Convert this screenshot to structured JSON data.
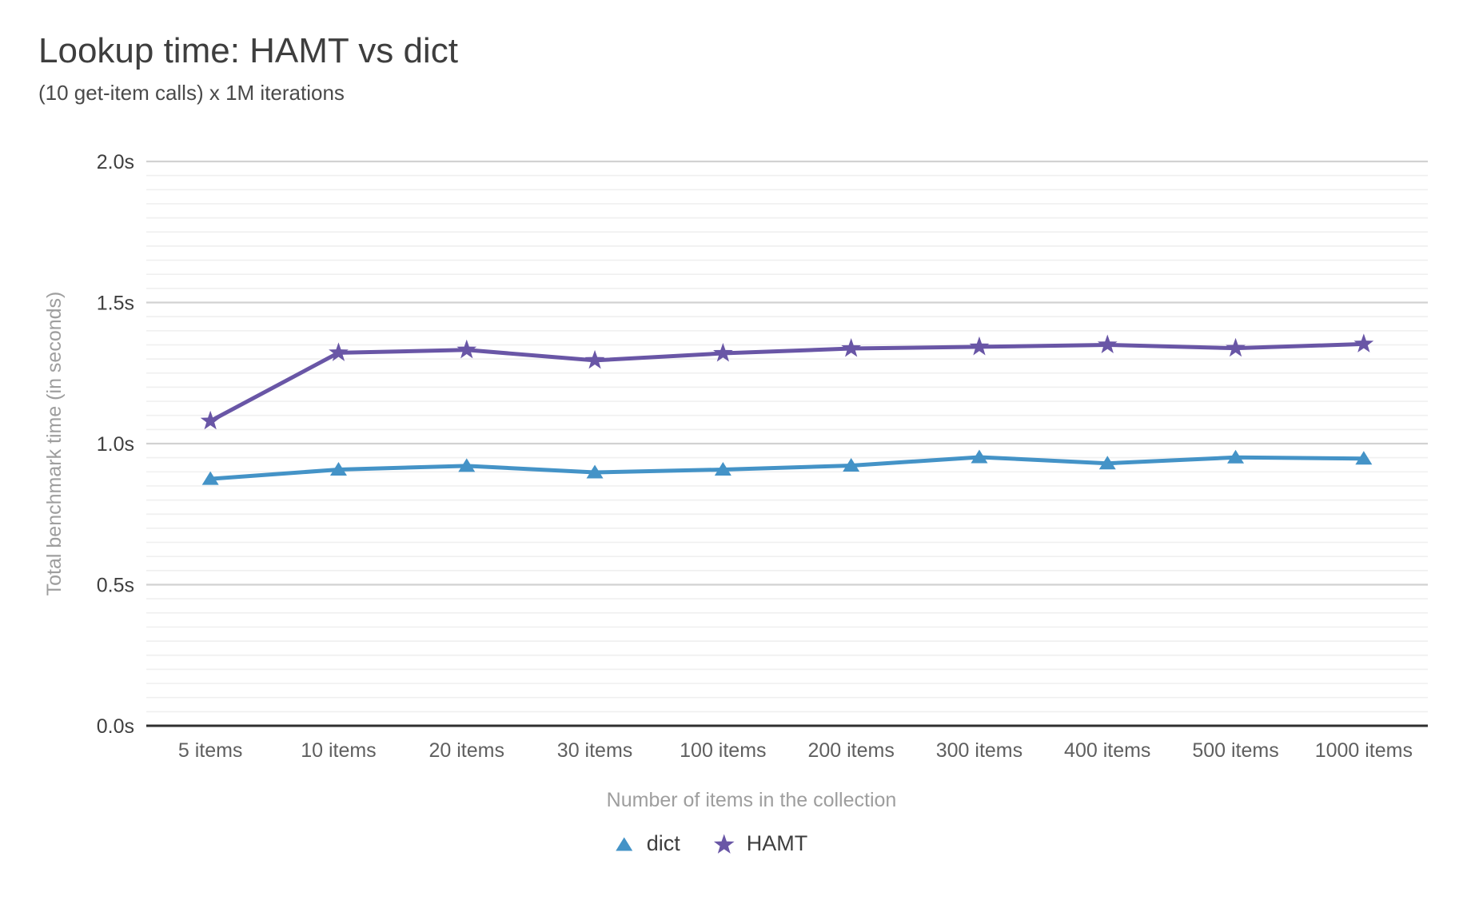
{
  "chart_data": {
    "type": "line",
    "title": "Lookup time: HAMT vs dict",
    "subtitle": "(10 get-item calls) x 1M iterations",
    "categories": [
      "5 items",
      "10 items",
      "20 items",
      "30 items",
      "100 items",
      "200 items",
      "300 items",
      "400 items",
      "500 items",
      "1000 items"
    ],
    "series": [
      {
        "name": "dict",
        "marker": "triangle",
        "color": "#4493c7",
        "values": [
          0.875,
          0.908,
          0.921,
          0.898,
          0.908,
          0.922,
          0.952,
          0.93,
          0.951,
          0.947
        ]
      },
      {
        "name": "HAMT",
        "marker": "star",
        "color": "#6956a6",
        "values": [
          1.08,
          1.322,
          1.332,
          1.295,
          1.32,
          1.337,
          1.343,
          1.35,
          1.338,
          1.353
        ]
      }
    ],
    "xlabel": "Number of items in the collection",
    "ylabel": "Total benchmark time (in seconds)",
    "ylim": [
      0,
      2
    ],
    "ytick_interval": 0.5,
    "ytick_minor_interval": 0.05,
    "ytick_labels": [
      "0.0s",
      "0.5s",
      "1.0s",
      "1.5s",
      "2.0s"
    ],
    "grid": "horizontal-only",
    "legend_position": "bottom"
  },
  "colors": {
    "grid_minor": "#f0f0f0",
    "grid_major": "#d2d2d2",
    "axis_baseline": "#2f2f2f",
    "title_text": "#3e3e3e",
    "subtitle_text": "#4a4a4a",
    "ytick_text": "#3f3f3f",
    "xtick_text": "#5f5f5f",
    "axis_title_text": "#9e9e9e"
  }
}
